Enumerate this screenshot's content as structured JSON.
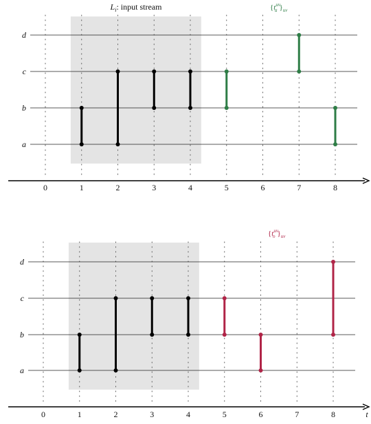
{
  "panels": [
    {
      "title": "L_i: input stream",
      "title_main": "L",
      "title_sub": "i",
      "title_rest": ": input stream",
      "label_base": "{t",
      "label_sup": "uv",
      "label_sub": "a",
      "label_close": "}",
      "label_outer_sub": "uv",
      "accent": "#2e7d46",
      "nodes": [
        "a",
        "b",
        "c",
        "d"
      ],
      "ticks": [
        "0",
        "1",
        "2",
        "3",
        "4",
        "5",
        "6",
        "7",
        "8"
      ],
      "axis_label": "",
      "shaded_range": [
        0.7,
        4.3
      ],
      "edges": [
        {
          "t": 1,
          "from": "a",
          "to": "b",
          "highlight": false
        },
        {
          "t": 2,
          "from": "a",
          "to": "c",
          "highlight": false
        },
        {
          "t": 3,
          "from": "b",
          "to": "c",
          "highlight": false
        },
        {
          "t": 4,
          "from": "b",
          "to": "c",
          "highlight": false
        },
        {
          "t": 5,
          "from": "b",
          "to": "c",
          "highlight": true
        },
        {
          "t": 7,
          "from": "c",
          "to": "d",
          "highlight": true
        },
        {
          "t": 8,
          "from": "a",
          "to": "b",
          "highlight": true
        }
      ]
    },
    {
      "title": "",
      "label_base": "{t",
      "label_sup": "uv",
      "label_sub": "o",
      "label_close": "}",
      "label_outer_sub": "uv",
      "accent": "#b02447",
      "nodes": [
        "a",
        "b",
        "c",
        "d"
      ],
      "ticks": [
        "0",
        "1",
        "2",
        "3",
        "4",
        "5",
        "6",
        "7",
        "8"
      ],
      "axis_label": "t",
      "shaded_range": [
        0.7,
        4.3
      ],
      "edges": [
        {
          "t": 1,
          "from": "a",
          "to": "b",
          "highlight": false
        },
        {
          "t": 2,
          "from": "a",
          "to": "c",
          "highlight": false
        },
        {
          "t": 3,
          "from": "b",
          "to": "c",
          "highlight": false
        },
        {
          "t": 4,
          "from": "b",
          "to": "c",
          "highlight": false
        },
        {
          "t": 5,
          "from": "b",
          "to": "c",
          "highlight": true
        },
        {
          "t": 6,
          "from": "a",
          "to": "b",
          "highlight": true
        },
        {
          "t": 8,
          "from": "b",
          "to": "d",
          "highlight": true
        }
      ]
    }
  ]
}
